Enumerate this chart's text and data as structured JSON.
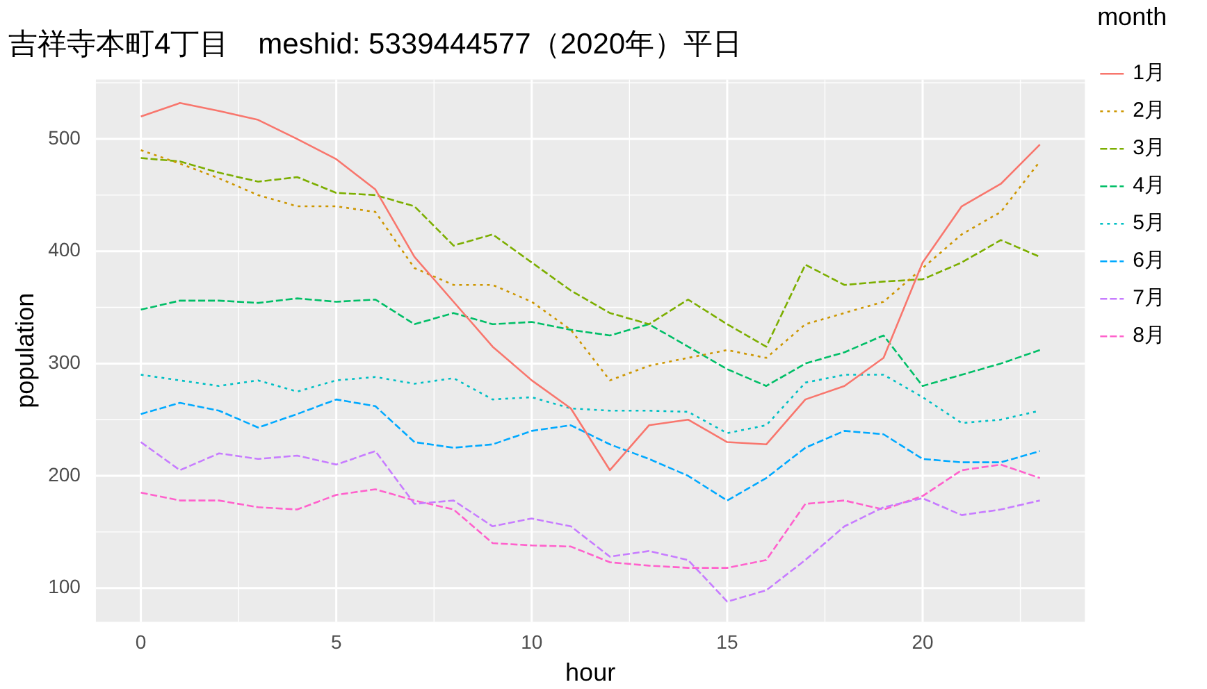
{
  "chart_data": {
    "type": "line",
    "title": "吉祥寺本町4丁目　meshid: 5339444577（2020年）平日",
    "xlabel": "hour",
    "ylabel": "population",
    "legend_title": "month",
    "x": [
      0,
      1,
      2,
      3,
      4,
      5,
      6,
      7,
      8,
      9,
      10,
      11,
      12,
      13,
      14,
      15,
      16,
      17,
      18,
      19,
      20,
      21,
      22,
      23
    ],
    "series": [
      {
        "name": "1月",
        "color": "#f8766d",
        "line_style": "solid",
        "values": [
          520,
          532,
          525,
          517,
          500,
          482,
          455,
          395,
          355,
          315,
          285,
          260,
          205,
          245,
          250,
          230,
          228,
          268,
          280,
          305,
          390,
          440,
          460,
          495
        ]
      },
      {
        "name": "2月",
        "color": "#cd9600",
        "line_style": "dotted",
        "values": [
          490,
          478,
          465,
          450,
          440,
          440,
          435,
          385,
          370,
          370,
          355,
          330,
          285,
          298,
          305,
          312,
          305,
          335,
          345,
          355,
          385,
          415,
          435,
          480
        ]
      },
      {
        "name": "3月",
        "color": "#7cae00",
        "line_style": "dashed",
        "values": [
          483,
          480,
          470,
          462,
          466,
          452,
          450,
          440,
          405,
          415,
          390,
          365,
          345,
          335,
          357,
          335,
          315,
          388,
          370,
          373,
          375,
          390,
          410,
          395
        ]
      },
      {
        "name": "4月",
        "color": "#00be67",
        "line_style": "dashed",
        "values": [
          348,
          356,
          356,
          354,
          358,
          355,
          357,
          335,
          345,
          335,
          337,
          330,
          325,
          335,
          315,
          295,
          280,
          300,
          310,
          325,
          280,
          290,
          300,
          312
        ]
      },
      {
        "name": "5月",
        "color": "#00bfc4",
        "line_style": "dotted",
        "values": [
          290,
          285,
          280,
          285,
          275,
          285,
          288,
          282,
          287,
          268,
          270,
          260,
          258,
          258,
          257,
          238,
          245,
          283,
          290,
          290,
          270,
          247,
          250,
          258
        ]
      },
      {
        "name": "6月",
        "color": "#00a9ff",
        "line_style": "dashed",
        "values": [
          255,
          265,
          258,
          243,
          255,
          268,
          262,
          230,
          225,
          228,
          240,
          245,
          228,
          215,
          200,
          178,
          198,
          225,
          240,
          237,
          215,
          212,
          212,
          222
        ]
      },
      {
        "name": "7月",
        "color": "#c77cff",
        "line_style": "dashed",
        "values": [
          230,
          205,
          220,
          215,
          218,
          210,
          222,
          175,
          178,
          155,
          162,
          155,
          128,
          133,
          125,
          88,
          98,
          125,
          155,
          172,
          180,
          165,
          170,
          178
        ]
      },
      {
        "name": "8月",
        "color": "#ff61cc",
        "line_style": "dashed",
        "values": [
          185,
          178,
          178,
          172,
          170,
          183,
          188,
          178,
          170,
          140,
          138,
          137,
          123,
          120,
          118,
          118,
          125,
          175,
          178,
          170,
          182,
          205,
          210,
          198
        ]
      }
    ],
    "xlim": [
      -1.15,
      24.15
    ],
    "xticks": [
      0,
      5,
      10,
      15,
      20
    ],
    "ylim": [
      70,
      553
    ],
    "yticks": [
      100,
      200,
      300,
      400,
      500
    ],
    "grid": true,
    "legend": "right",
    "marker": "none"
  }
}
